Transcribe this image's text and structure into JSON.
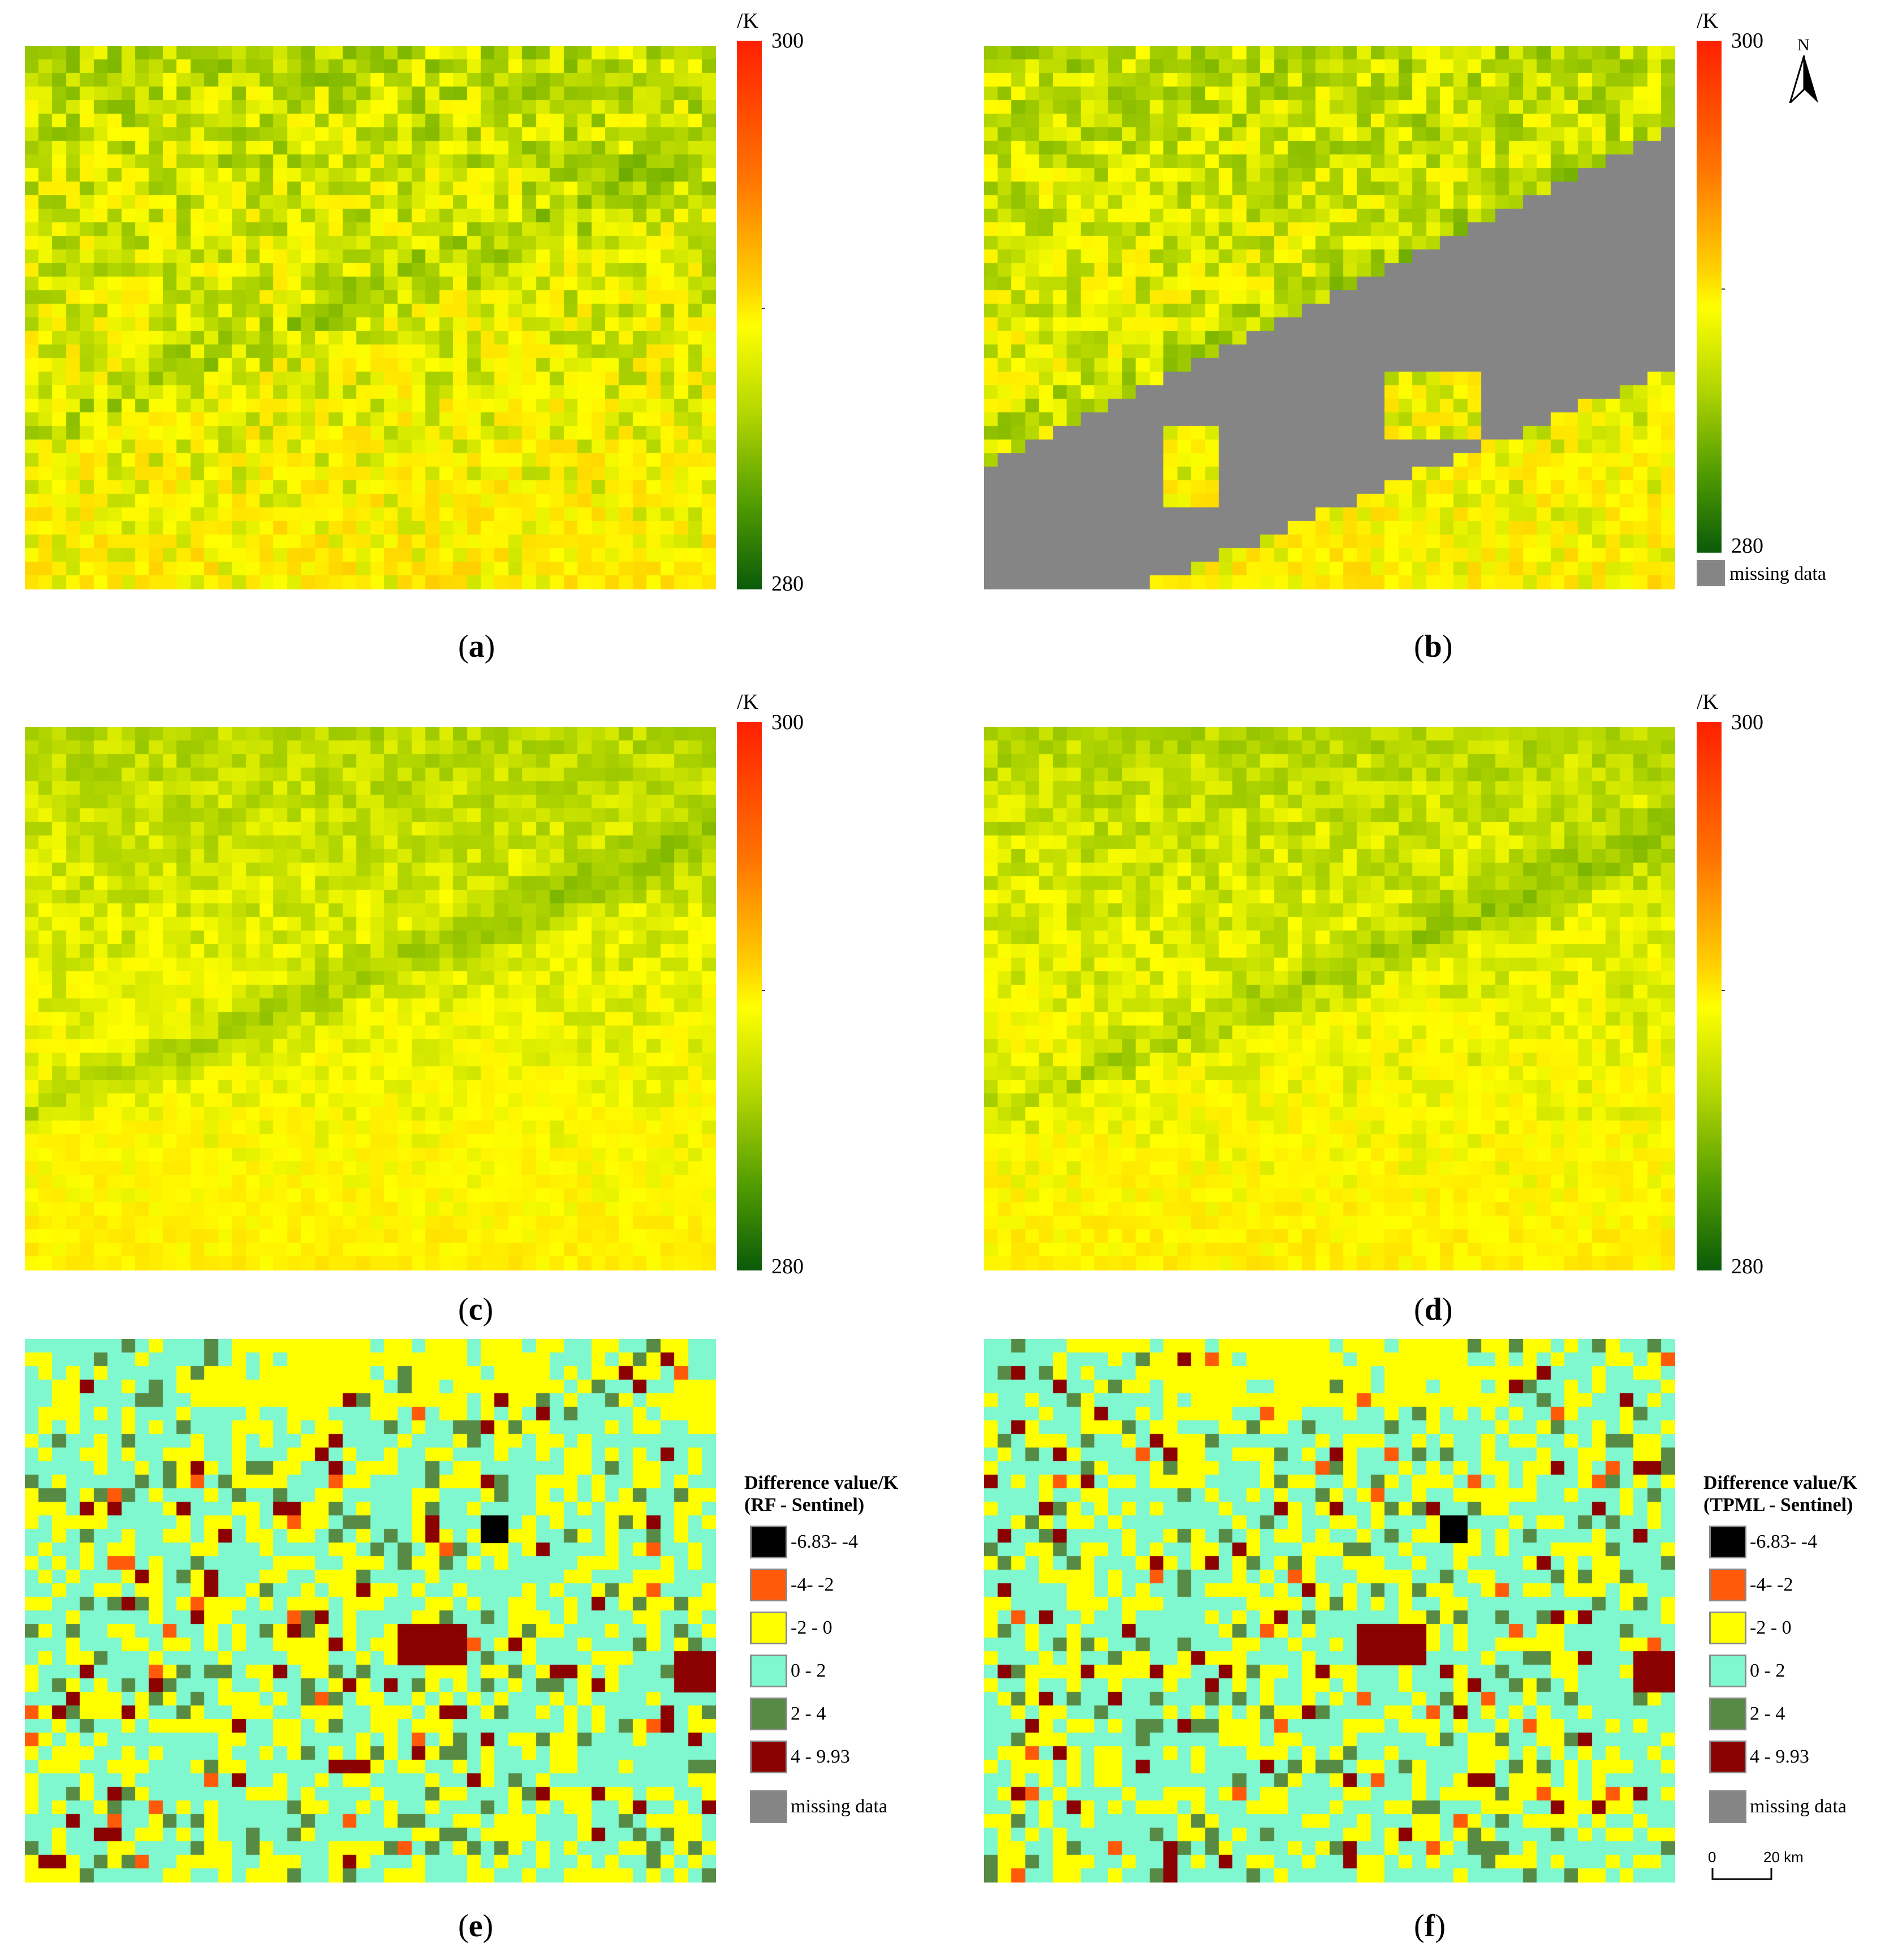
{
  "panels": [
    {
      "id": "a",
      "label": "a"
    },
    {
      "id": "b",
      "label": "b"
    },
    {
      "id": "c",
      "label": "c"
    },
    {
      "id": "d",
      "label": "d"
    },
    {
      "id": "e",
      "label": "e"
    },
    {
      "id": "f",
      "label": "f"
    }
  ],
  "colorbar": {
    "unit": "/K",
    "max": "300",
    "min": "280"
  },
  "missing_label": "missing data",
  "north_label": "N",
  "scale_bar": {
    "zero": "0",
    "length": "20 km"
  },
  "difference_legend": {
    "e": {
      "title": "Difference value/K",
      "subtitle": "(RF - Sentinel)"
    },
    "f": {
      "title": "Difference value/K",
      "subtitle": "(TPML - Sentinel)"
    },
    "classes": [
      {
        "label": "-6.83- -4",
        "color": "#000000"
      },
      {
        "label": "-4- -2",
        "color": "#ff5a0a"
      },
      {
        "label": "-2 - 0",
        "color": "#ffff00"
      },
      {
        "label": "0 - 2",
        "color": "#7ff7cf"
      },
      {
        "label": "2 - 4",
        "color": "#568a45"
      },
      {
        "label": "4 - 9.93",
        "color": "#8b0000"
      }
    ],
    "missing_color": "#858585"
  }
}
